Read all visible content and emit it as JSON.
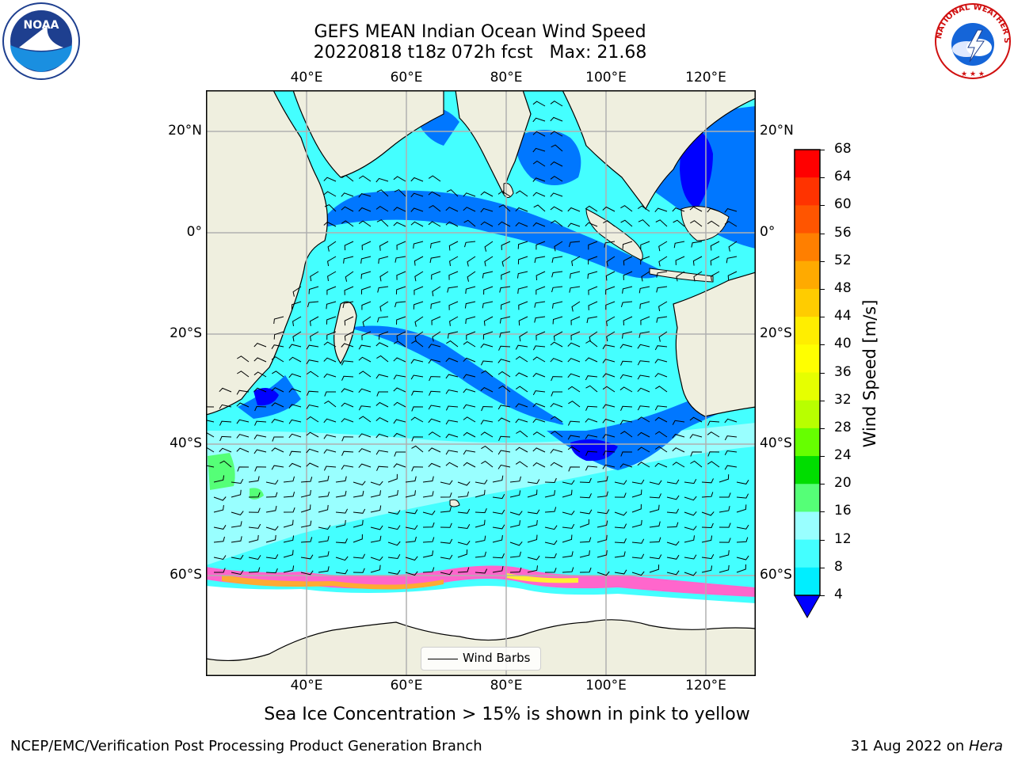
{
  "title": {
    "line1": "GEFS MEAN Indian Ocean Wind Speed",
    "line2": "20220818 t18z 072h fcst   Max: 21.68"
  },
  "map": {
    "lon_labels": [
      "40°E",
      "60°E",
      "80°E",
      "100°E",
      "120°E"
    ],
    "lat_labels": [
      "20°N",
      "0°",
      "20°S",
      "40°S",
      "60°S"
    ],
    "legend_label": "Wind Barbs",
    "colors": {
      "land": "#efefdf",
      "ice_free": "#ffffff",
      "border": "#000000"
    }
  },
  "colorbar": {
    "title": "Wind Speed [m/s]",
    "ticks": [
      "68",
      "64",
      "60",
      "56",
      "52",
      "48",
      "44",
      "40",
      "36",
      "32",
      "28",
      "24",
      "20",
      "16",
      "12",
      "8",
      "4"
    ],
    "colors": [
      "#ff0000",
      "#ff3300",
      "#ff5500",
      "#ff7f00",
      "#ffaa00",
      "#ffcc00",
      "#ffee00",
      "#ffff00",
      "#e6ff00",
      "#b8ff00",
      "#66ff00",
      "#00dd00",
      "#55ff77",
      "#99ffff",
      "#44ffff",
      "#00eeff",
      "#0077ff"
    ],
    "under_color": "#0000ff"
  },
  "caption": "Sea Ice Concentration > 15% is shown in pink to yellow",
  "credit_left": "NCEP/EMC/Verification Post Processing Product Generation Branch",
  "credit_right": {
    "date": "31 Aug 2022 on ",
    "machine": "Hera"
  },
  "logos": {
    "noaa_text": "NOAA",
    "nws_text": "NATIONAL WEATHER SERVICE"
  }
}
